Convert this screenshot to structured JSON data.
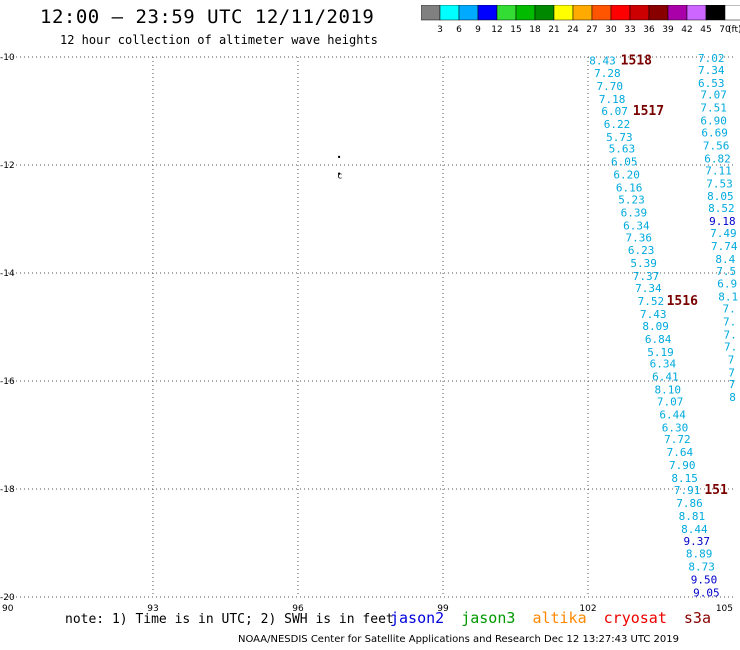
{
  "title": "12:00 — 23:59 UTC 12/11/2019",
  "subtitle": "12 hour collection of altimeter wave heights",
  "legend": {
    "bins": [
      "3",
      "6",
      "9",
      "12",
      "15",
      "18",
      "21",
      "24",
      "27",
      "30",
      "33",
      "36",
      "39",
      "42",
      "45",
      "70"
    ],
    "unit": "(ft)",
    "colors": [
      "#808080",
      "#00ffff",
      "#00aaff",
      "#0000ff",
      "#33dd33",
      "#00bb00",
      "#008800",
      "#ffff00",
      "#ffaa00",
      "#ff5500",
      "#ff0000",
      "#cc0000",
      "#880000",
      "#aa00aa",
      "#cc66ff",
      "#000000",
      "#ffffff"
    ]
  },
  "axes": {
    "x_ticks": [
      "90",
      "93",
      "96",
      "99",
      "102",
      "105"
    ],
    "y_ticks": [
      "-10",
      "-12",
      "-14",
      "-16",
      "-18",
      "-20"
    ],
    "x_range": [
      90,
      105
    ],
    "y_range": [
      -20,
      -10
    ]
  },
  "chart_data": {
    "type": "scatter",
    "x_range": [
      90,
      105
    ],
    "y_range": [
      -20,
      -10
    ],
    "grid": true,
    "series": [
      {
        "color": "#00aadd",
        "points": [
          {
            "x": 102.3,
            "y": -10.05,
            "label": "8.43"
          },
          {
            "x": 102.4,
            "y": -10.28,
            "label": "7.28"
          },
          {
            "x": 102.45,
            "y": -10.52,
            "label": "7.70"
          },
          {
            "x": 102.5,
            "y": -10.76,
            "label": "7.18"
          },
          {
            "x": 102.55,
            "y": -10.98,
            "label": "6.07"
          },
          {
            "x": 102.6,
            "y": -11.22,
            "label": "6.22"
          },
          {
            "x": 102.65,
            "y": -11.46,
            "label": "5.73"
          },
          {
            "x": 102.7,
            "y": -11.68,
            "label": "5.63"
          },
          {
            "x": 102.75,
            "y": -11.92,
            "label": "6.05"
          },
          {
            "x": 102.8,
            "y": -12.16,
            "label": "6.20"
          },
          {
            "x": 102.85,
            "y": -12.4,
            "label": "6.16"
          },
          {
            "x": 102.9,
            "y": -12.62,
            "label": "5.23"
          },
          {
            "x": 102.95,
            "y": -12.86,
            "label": "6.39"
          },
          {
            "x": 103.0,
            "y": -13.1,
            "label": "6.34"
          },
          {
            "x": 103.05,
            "y": -13.32,
            "label": "7.36"
          },
          {
            "x": 103.1,
            "y": -13.56,
            "label": "6.23"
          },
          {
            "x": 103.15,
            "y": -13.8,
            "label": "5.39"
          },
          {
            "x": 103.2,
            "y": -14.04,
            "label": "7.37"
          },
          {
            "x": 103.25,
            "y": -14.26,
            "label": "7.34"
          },
          {
            "x": 103.3,
            "y": -14.5,
            "label": "7.52"
          },
          {
            "x": 103.35,
            "y": -14.74,
            "label": "7.43"
          },
          {
            "x": 103.4,
            "y": -14.96,
            "label": "8.09"
          },
          {
            "x": 103.45,
            "y": -15.2,
            "label": "6.84"
          },
          {
            "x": 103.5,
            "y": -15.44,
            "label": "5.19"
          },
          {
            "x": 103.55,
            "y": -15.66,
            "label": "6.34"
          },
          {
            "x": 103.6,
            "y": -15.9,
            "label": "6.41"
          },
          {
            "x": 103.65,
            "y": -16.14,
            "label": "8.10"
          },
          {
            "x": 103.7,
            "y": -16.36,
            "label": "7.07"
          },
          {
            "x": 103.75,
            "y": -16.6,
            "label": "6.44"
          },
          {
            "x": 103.8,
            "y": -16.84,
            "label": "6.30"
          },
          {
            "x": 103.85,
            "y": -17.06,
            "label": "7.72"
          },
          {
            "x": 103.9,
            "y": -17.3,
            "label": "7.64"
          },
          {
            "x": 103.95,
            "y": -17.54,
            "label": "7.90"
          },
          {
            "x": 104.0,
            "y": -17.78,
            "label": "8.15"
          },
          {
            "x": 104.05,
            "y": -18.0,
            "label": "7.91"
          },
          {
            "x": 104.1,
            "y": -18.24,
            "label": "7.86"
          },
          {
            "x": 104.15,
            "y": -18.48,
            "label": "8.81"
          },
          {
            "x": 104.2,
            "y": -18.72,
            "label": "8.44"
          },
          {
            "x": 104.3,
            "y": -19.18,
            "label": "8.89"
          },
          {
            "x": 104.35,
            "y": -19.42,
            "label": "8.73"
          }
        ]
      },
      {
        "color": "#0000cc",
        "points": [
          {
            "x": 104.25,
            "y": -18.94,
            "label": "9.37"
          },
          {
            "x": 104.4,
            "y": -19.66,
            "label": "9.50"
          },
          {
            "x": 104.45,
            "y": -19.9,
            "label": "9.05"
          }
        ]
      },
      {
        "color": "#00aadd",
        "points": [
          {
            "x": 104.55,
            "y": -10.0,
            "label": "7.02"
          },
          {
            "x": 104.55,
            "y": -10.22,
            "label": "7.34"
          },
          {
            "x": 104.55,
            "y": -10.46,
            "label": "6.53"
          },
          {
            "x": 104.6,
            "y": -10.68,
            "label": "7.07"
          },
          {
            "x": 104.6,
            "y": -10.92,
            "label": "7.51"
          },
          {
            "x": 104.6,
            "y": -11.16,
            "label": "6.90"
          },
          {
            "x": 104.62,
            "y": -11.38,
            "label": "6.69"
          },
          {
            "x": 104.65,
            "y": -11.62,
            "label": "7.56"
          },
          {
            "x": 104.68,
            "y": -11.86,
            "label": "6.82"
          },
          {
            "x": 104.7,
            "y": -12.08,
            "label": "7.11"
          },
          {
            "x": 104.72,
            "y": -12.32,
            "label": "7.53"
          },
          {
            "x": 104.74,
            "y": -12.56,
            "label": "8.05"
          },
          {
            "x": 104.76,
            "y": -12.78,
            "label": "8.52"
          },
          {
            "x": 104.8,
            "y": -13.24,
            "label": "7.49"
          },
          {
            "x": 104.82,
            "y": -13.48,
            "label": "7.74"
          },
          {
            "x": 104.84,
            "y": -13.72,
            "label": "8.4"
          },
          {
            "x": 104.86,
            "y": -13.94,
            "label": "7.5"
          },
          {
            "x": 104.88,
            "y": -14.18,
            "label": "6.9"
          },
          {
            "x": 104.9,
            "y": -14.42,
            "label": "8.1"
          },
          {
            "x": 104.92,
            "y": -14.64,
            "label": "7."
          },
          {
            "x": 104.93,
            "y": -14.88,
            "label": "7."
          },
          {
            "x": 104.94,
            "y": -15.12,
            "label": "7."
          },
          {
            "x": 104.95,
            "y": -15.34,
            "label": "7."
          },
          {
            "x": 104.96,
            "y": -15.58,
            "label": "7"
          },
          {
            "x": 104.97,
            "y": -15.82,
            "label": "7"
          },
          {
            "x": 104.98,
            "y": -16.04,
            "label": "7"
          },
          {
            "x": 104.99,
            "y": -16.28,
            "label": "8"
          }
        ]
      },
      {
        "color": "#0000cc",
        "points": [
          {
            "x": 104.78,
            "y": -13.02,
            "label": "9.18"
          }
        ]
      }
    ],
    "annotations": [
      {
        "x": 103.0,
        "y": -10.05,
        "label": "1518",
        "color": "#7a0000"
      },
      {
        "x": 103.25,
        "y": -10.98,
        "label": "1517",
        "color": "#7a0000"
      },
      {
        "x": 103.95,
        "y": -14.5,
        "label": "1516",
        "color": "#7a0000"
      },
      {
        "x": 104.65,
        "y": -18.0,
        "label": "151",
        "color": "#7a0000"
      }
    ],
    "markers": [
      {
        "x": 96.85,
        "y": -11.85
      },
      {
        "x": 96.85,
        "y": -12.16
      }
    ]
  },
  "footer": {
    "note": "note: 1) Time is in UTC; 2) SWH is in feet",
    "satellites": [
      {
        "name": "jason2",
        "color": "#0000dd"
      },
      {
        "name": "jason3",
        "color": "#009900"
      },
      {
        "name": "altika",
        "color": "#ff8800"
      },
      {
        "name": "cryosat",
        "color": "#ee0000"
      },
      {
        "name": "s3a",
        "color": "#880000"
      }
    ],
    "credit": "NOAA/NESDIS Center for Satellite Applications and Research    Dec 12 13:27:43 UTC 2019"
  }
}
